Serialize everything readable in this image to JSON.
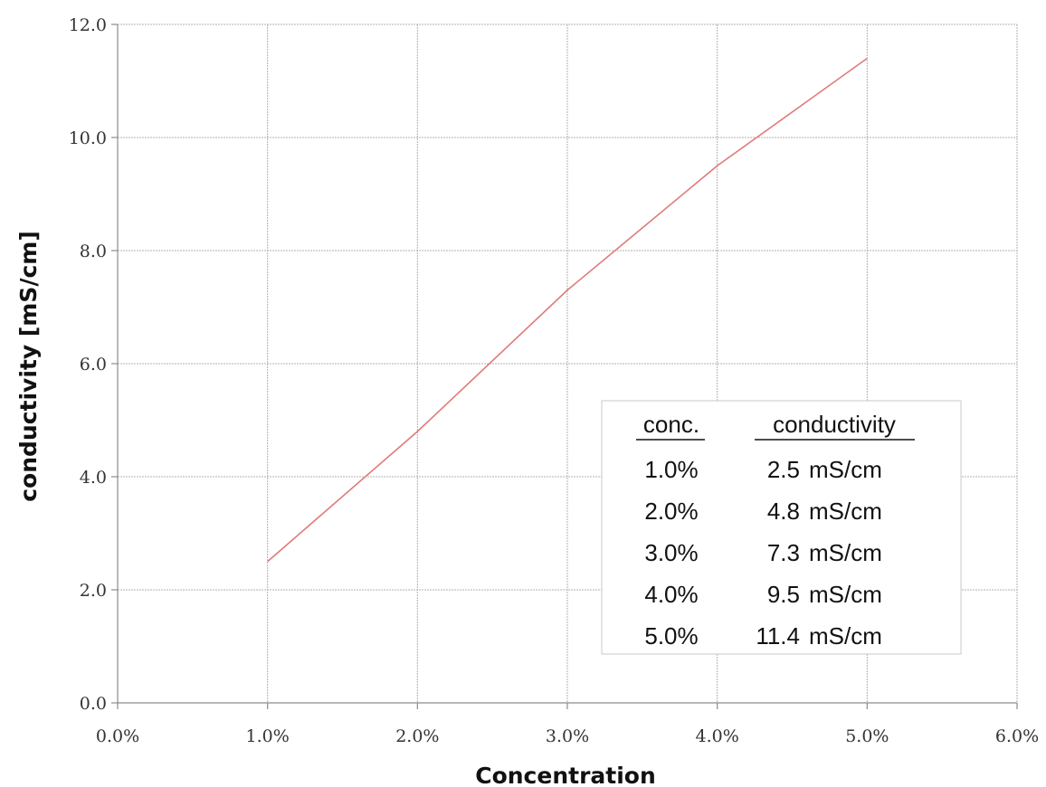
{
  "chart_data": {
    "type": "line",
    "title": "",
    "xlabel": "Concentration",
    "ylabel": "conductivity [mS/cm]",
    "x": [
      1.0,
      2.0,
      3.0,
      4.0,
      5.0
    ],
    "series": [
      {
        "values": [
          2.5,
          4.8,
          7.3,
          9.5,
          11.4
        ],
        "color": "#e07a7a"
      }
    ],
    "xlim": [
      0,
      6
    ],
    "ylim": [
      0,
      12
    ],
    "x_ticks": [
      0,
      1,
      2,
      3,
      4,
      5,
      6
    ],
    "x_tick_labels": [
      "0.0%",
      "1.0%",
      "2.0%",
      "3.0%",
      "4.0%",
      "5.0%",
      "6.0%"
    ],
    "y_ticks": [
      0,
      2,
      4,
      6,
      8,
      10,
      12
    ],
    "y_tick_labels": [
      "0.0",
      "2.0",
      "4.0",
      "6.0",
      "8.0",
      "10.0",
      "12.0"
    ],
    "grid": true,
    "legend_table": {
      "placement": "bottom-right",
      "headers": [
        "conc.",
        "conductivity"
      ],
      "rows": [
        [
          "1.0%",
          "2.5",
          "mS/cm"
        ],
        [
          "2.0%",
          "4.8",
          "mS/cm"
        ],
        [
          "3.0%",
          "7.3",
          "mS/cm"
        ],
        [
          "4.0%",
          "9.5",
          "mS/cm"
        ],
        [
          "5.0%",
          "11.4",
          "mS/cm"
        ]
      ]
    }
  }
}
